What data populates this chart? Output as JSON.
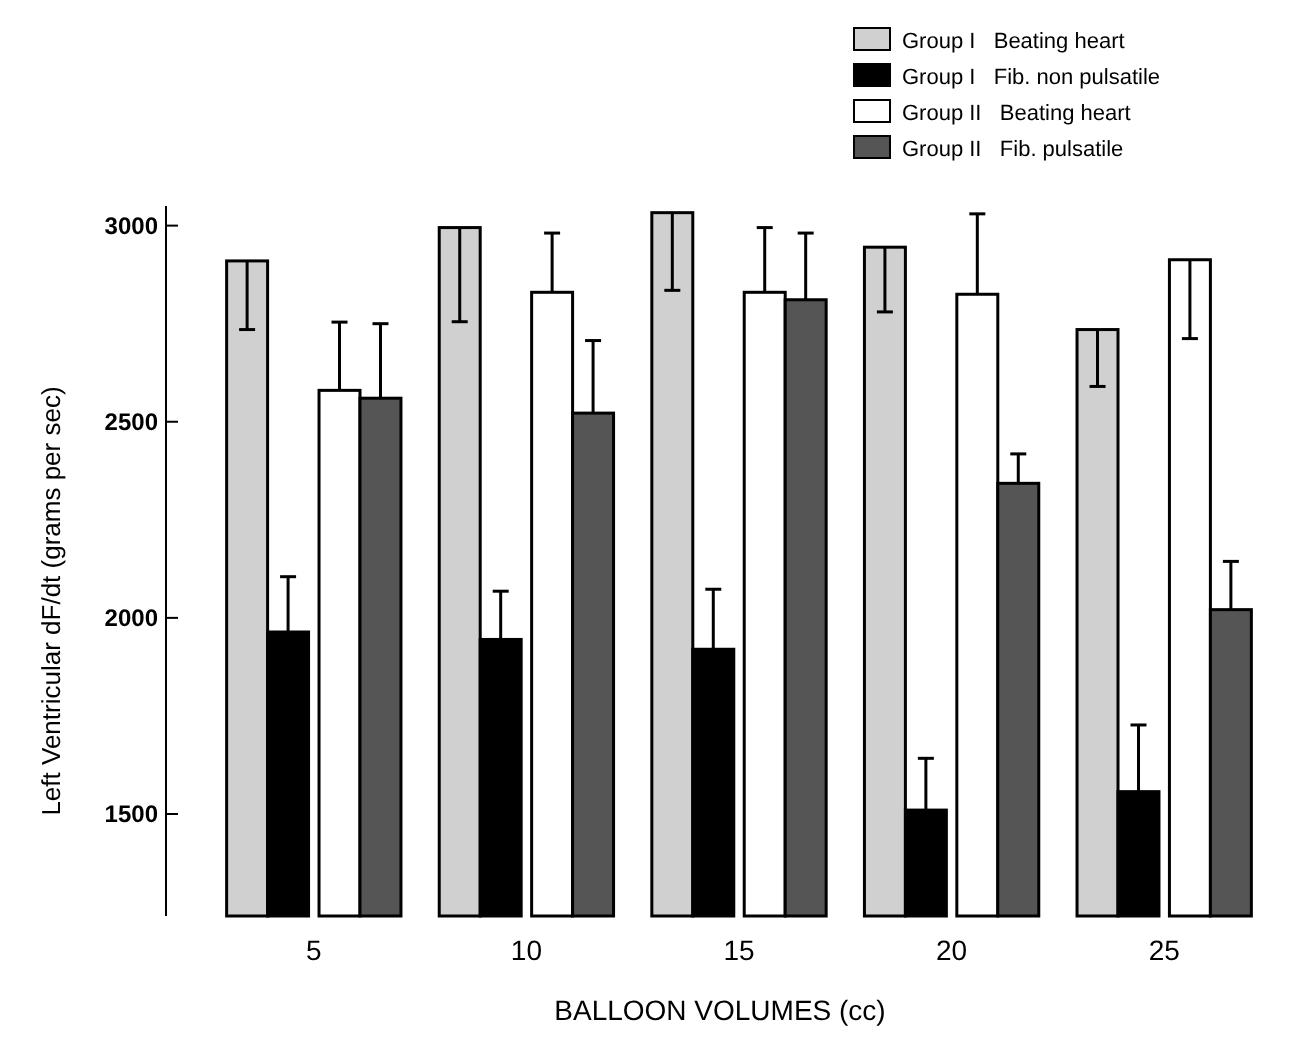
{
  "chart_data": {
    "type": "bar",
    "xlabel": "BALLOON VOLUMES (cc)",
    "ylabel": "Left Ventricular dF/dt (grams per sec)",
    "categories": [
      "5",
      "10",
      "15",
      "20",
      "25"
    ],
    "ylim": [
      1240,
      3050
    ],
    "yticks": [
      1500,
      2000,
      2500,
      3000
    ],
    "grid": false,
    "legend": "top right",
    "series": [
      {
        "name": "Group I   Beating heart",
        "color": "#d0d0d0",
        "values": [
          2910,
          2995,
          3033,
          2945,
          2735
        ],
        "errors": [
          [
            2735,
            2910
          ],
          [
            2755,
            2995
          ],
          [
            2835,
            3033
          ],
          [
            2780,
            2945
          ],
          [
            2590,
            2735
          ]
        ]
      },
      {
        "name": "Group I   Fib. non pulsatile",
        "color": "#000000",
        "values": [
          1964,
          1945,
          1920,
          1510,
          1557
        ],
        "errors": [
          [
            1964,
            2105
          ],
          [
            1945,
            2068
          ],
          [
            1920,
            2073
          ],
          [
            1510,
            1642
          ],
          [
            1557,
            1727
          ]
        ]
      },
      {
        "name": "Group II   Beating heart",
        "color": "#ffffff",
        "values": [
          2580,
          2830,
          2830,
          2825,
          2913
        ],
        "errors": [
          [
            2580,
            2754
          ],
          [
            2830,
            2981
          ],
          [
            2830,
            2995
          ],
          [
            2825,
            3030
          ],
          [
            2712,
            2913
          ]
        ]
      },
      {
        "name": "Group II   Fib. pulsatile",
        "color": "#555555",
        "values": [
          2560,
          2522,
          2811,
          2343,
          2021
        ],
        "errors": [
          [
            2560,
            2750
          ],
          [
            2522,
            2707
          ],
          [
            2811,
            2981
          ],
          [
            2343,
            2418
          ],
          [
            2021,
            2144
          ]
        ]
      }
    ]
  }
}
